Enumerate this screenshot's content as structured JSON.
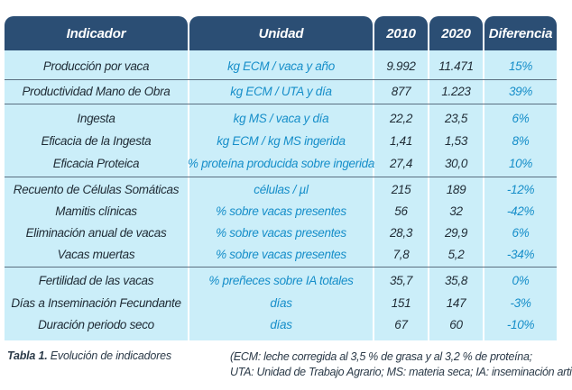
{
  "headers": {
    "indicador": "Indicador",
    "unidad": "Unidad",
    "y2010": "2010",
    "y2020": "2020",
    "diferencia": "Diferencia"
  },
  "rows": [
    {
      "indicador": "Producción por vaca",
      "unidad": "kg ECM / vaca y año",
      "v2010": "9.992",
      "v2020": "11.471",
      "diferencia": "15%"
    },
    {
      "indicador": "Productividad Mano de Obra",
      "unidad": "kg ECM / UTA y día",
      "v2010": "877",
      "v2020": "1.223",
      "diferencia": "39%"
    },
    {
      "indicador": "Ingesta",
      "unidad": "kg MS / vaca y día",
      "v2010": "22,2",
      "v2020": "23,5",
      "diferencia": "6%"
    },
    {
      "indicador": "Eficacia de la Ingesta",
      "unidad": "kg ECM / kg MS ingerida",
      "v2010": "1,41",
      "v2020": "1,53",
      "diferencia": "8%"
    },
    {
      "indicador": "Eficacia Proteica",
      "unidad": "% proteína producida sobre ingerida",
      "v2010": "27,4",
      "v2020": "30,0",
      "diferencia": "10%"
    },
    {
      "indicador": "Recuento de Células Somáticas",
      "unidad": "células / µl",
      "v2010": "215",
      "v2020": "189",
      "diferencia": "-12%"
    },
    {
      "indicador": "Mamitis clínicas",
      "unidad": "% sobre vacas presentes",
      "v2010": "56",
      "v2020": "32",
      "diferencia": "-42%"
    },
    {
      "indicador": "Eliminación anual de vacas",
      "unidad": "% sobre vacas presentes",
      "v2010": "28,3",
      "v2020": "29,9",
      "diferencia": "6%"
    },
    {
      "indicador": "Vacas muertas",
      "unidad": "% sobre vacas presentes",
      "v2010": "7,8",
      "v2020": "5,2",
      "diferencia": "-34%"
    },
    {
      "indicador": "Fertilidad de las vacas",
      "unidad": "% preñeces sobre IA totales",
      "v2010": "35,7",
      "v2020": "35,8",
      "diferencia": "0%"
    },
    {
      "indicador": "Días a Inseminación Fecundante",
      "unidad": "días",
      "v2010": "151",
      "v2020": "147",
      "diferencia": "-3%"
    },
    {
      "indicador": "Duración periodo seco",
      "unidad": "días",
      "v2010": "67",
      "v2020": "60",
      "diferencia": "-10%"
    }
  ],
  "caption": {
    "label": "Tabla 1.",
    "text": " Evolución de indicadores"
  },
  "note": {
    "line1": "(ECM: leche corregida al 3,5 % de grasa y al 3,2 % de proteína;",
    "line2": "UTA: Unidad de Trabajo Agrario; MS: materia seca; IA: inseminación artificial)"
  },
  "colors": {
    "header_bg": "#2b4e74",
    "table_bg": "#cbeef9",
    "accent_text": "#168ec9",
    "body_text": "#1f2b35"
  }
}
